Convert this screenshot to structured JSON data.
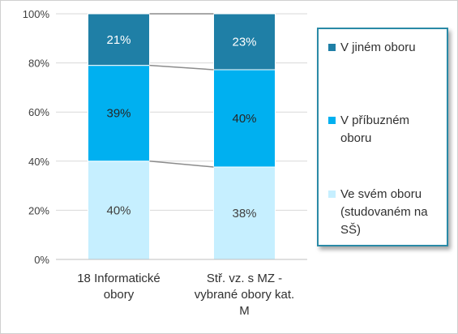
{
  "chart_data": {
    "type": "bar",
    "stacked": true,
    "normalized": true,
    "categories": [
      [
        "18 Informatické",
        "obory"
      ],
      [
        "Stř. vz. s MZ -",
        "vybrané obory kat.",
        "M"
      ]
    ],
    "series": [
      {
        "name": "Ve svém oboru (studovaném na SŠ)",
        "legend_lines": [
          "Ve svém oboru",
          "(studovaném na",
          "SŠ)"
        ],
        "values": [
          40,
          38
        ],
        "labels": [
          "40%",
          "38%"
        ],
        "color": "#c6efff",
        "label_color": "#404040"
      },
      {
        "name": "V příbuzném oboru",
        "legend_lines": [
          "V příbuzném",
          "oboru"
        ],
        "values": [
          39,
          40
        ],
        "labels": [
          "39%",
          "40%"
        ],
        "color": "#00b0f0",
        "label_color": "#262626"
      },
      {
        "name": "V jiném oboru",
        "legend_lines": [
          "V jiném oboru"
        ],
        "values": [
          21,
          23
        ],
        "labels": [
          "21%",
          "23%"
        ],
        "color": "#1f7fa6",
        "label_color": "#ffffff"
      }
    ],
    "yticks": [
      "0%",
      "20%",
      "40%",
      "60%",
      "80%",
      "100%"
    ],
    "ylim": [
      0,
      100
    ],
    "grid": true,
    "legend_position": "right",
    "series_lines": true
  }
}
